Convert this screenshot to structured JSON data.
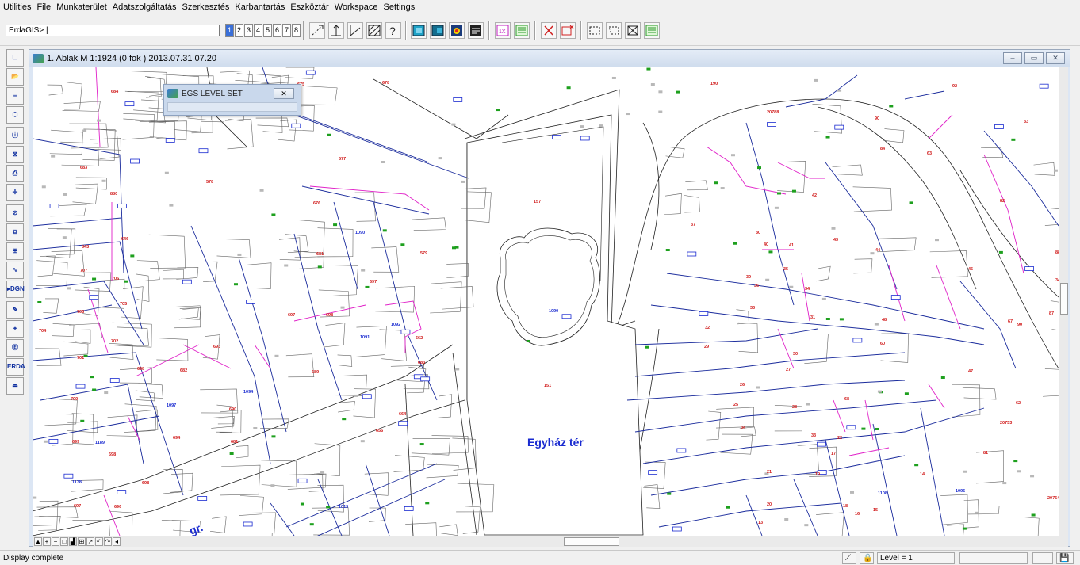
{
  "menu": [
    "Utilities",
    "File",
    "Munkaterület",
    "Adatszolgáltatás",
    "Szerkesztés",
    "Karbantartás",
    "Eszköztár",
    "Workspace",
    "Settings"
  ],
  "command": {
    "value": "ErdaGIS> |"
  },
  "views": [
    "1",
    "2",
    "3",
    "4",
    "5",
    "6",
    "7",
    "8"
  ],
  "window": {
    "title": "1. Ablak  M 1:1924   (0 fok )  2013.07.31 07.20",
    "minimize": "‒",
    "restore": "▭",
    "close": "✕"
  },
  "dialog": {
    "title": "EGS LEVEL SET",
    "close": "✕"
  },
  "left_tools": [
    {
      "name": "select-icon",
      "glyph": "☐"
    },
    {
      "name": "open-folder-icon",
      "glyph": "📂"
    },
    {
      "name": "layers-icon",
      "glyph": "≡"
    },
    {
      "name": "cube-icon",
      "glyph": "⬡"
    },
    {
      "name": "info-icon",
      "glyph": "ⓘ"
    },
    {
      "name": "zoom-query-icon",
      "glyph": "⊠"
    },
    {
      "name": "print-icon",
      "glyph": "⎙"
    },
    {
      "name": "snap-icon",
      "glyph": "✛"
    },
    {
      "name": "no-entry-icon",
      "glyph": "⊘"
    },
    {
      "name": "window-zoom-icon",
      "glyph": "⧉"
    },
    {
      "name": "grid-icon",
      "glyph": "⊞"
    },
    {
      "name": "polyline-icon",
      "glyph": "∿"
    },
    {
      "name": "dgn-icon",
      "glyph": "▸DGN"
    },
    {
      "name": "edit-doc-icon",
      "glyph": "✎"
    },
    {
      "name": "tree-icon",
      "glyph": "⌖"
    },
    {
      "name": "tree-e-icon",
      "glyph": "Ⓔ"
    },
    {
      "name": "erda-icon",
      "glyph": "ERDA"
    },
    {
      "name": "exit-icon",
      "glyph": "⏏"
    }
  ],
  "map": {
    "street_label": "Egyház tér",
    "street_label2": "gr.",
    "red_parcels": [
      [
        "684",
        99,
        32
      ],
      [
        "683",
        60,
        128
      ],
      [
        "880",
        98,
        161
      ],
      [
        "646",
        112,
        218
      ],
      [
        "643",
        62,
        228
      ],
      [
        "707",
        60,
        258
      ],
      [
        "706",
        100,
        268
      ],
      [
        "705",
        56,
        310
      ],
      [
        "705",
        110,
        300
      ],
      [
        "704",
        8,
        334
      ],
      [
        "702",
        99,
        347
      ],
      [
        "701",
        56,
        368
      ],
      [
        "698",
        132,
        382
      ],
      [
        "700",
        48,
        420
      ],
      [
        "699",
        50,
        474
      ],
      [
        "698",
        96,
        490
      ],
      [
        "697",
        52,
        555
      ],
      [
        "696",
        103,
        556
      ],
      [
        "698",
        138,
        526
      ],
      [
        "694",
        177,
        469
      ],
      [
        "682",
        186,
        384
      ],
      [
        "693",
        228,
        354
      ],
      [
        "681",
        250,
        474
      ],
      [
        "690",
        248,
        433
      ],
      [
        "697",
        322,
        314
      ],
      [
        "698",
        370,
        314
      ],
      [
        "689",
        352,
        386
      ],
      [
        "656",
        433,
        460
      ],
      [
        "664",
        462,
        439
      ],
      [
        "683",
        486,
        374
      ],
      [
        "662",
        483,
        343
      ],
      [
        "697",
        425,
        272
      ],
      [
        "578",
        219,
        146
      ],
      [
        "577",
        386,
        117
      ],
      [
        "676",
        354,
        173
      ],
      [
        "681",
        358,
        237
      ],
      [
        "579",
        489,
        236
      ],
      [
        "675",
        334,
        23
      ],
      [
        "678",
        441,
        21
      ],
      [
        "157",
        632,
        171
      ],
      [
        "151",
        645,
        403
      ],
      [
        "190",
        855,
        22
      ],
      [
        "20788",
        926,
        58
      ],
      [
        "90",
        1062,
        66
      ],
      [
        "84",
        1069,
        104
      ],
      [
        "63",
        1128,
        110
      ],
      [
        "92",
        1160,
        25
      ],
      [
        "82",
        1220,
        170
      ],
      [
        "33",
        1250,
        70
      ],
      [
        "73",
        1300,
        160
      ],
      [
        "88",
        1290,
        235
      ],
      [
        "90",
        1242,
        326
      ],
      [
        "87",
        1282,
        312
      ],
      [
        "67",
        1230,
        322
      ],
      [
        "47",
        1180,
        385
      ],
      [
        "62",
        1240,
        425
      ],
      [
        "34",
        1290,
        270
      ],
      [
        "20753",
        1220,
        450
      ],
      [
        "20754",
        1280,
        545
      ],
      [
        "81",
        1199,
        488
      ],
      [
        "68",
        1024,
        420
      ],
      [
        "60",
        1069,
        350
      ],
      [
        "48",
        1071,
        320
      ],
      [
        "44",
        1063,
        232
      ],
      [
        "45",
        1180,
        256
      ],
      [
        "42",
        983,
        163
      ],
      [
        "43",
        1010,
        219
      ],
      [
        "40",
        922,
        225
      ],
      [
        "41",
        954,
        226
      ],
      [
        "37",
        830,
        200
      ],
      [
        "30",
        912,
        210
      ],
      [
        "36",
        910,
        277
      ],
      [
        "35",
        947,
        256
      ],
      [
        "39",
        900,
        266
      ],
      [
        "34",
        974,
        281
      ],
      [
        "33",
        905,
        305
      ],
      [
        "31",
        981,
        317
      ],
      [
        "30",
        959,
        363
      ],
      [
        "27",
        950,
        383
      ],
      [
        "29",
        847,
        354
      ],
      [
        "26",
        892,
        402
      ],
      [
        "25",
        884,
        427
      ],
      [
        "34",
        893,
        456
      ],
      [
        "32",
        848,
        330
      ],
      [
        "28",
        958,
        430
      ],
      [
        "33",
        982,
        466
      ],
      [
        "22",
        1015,
        469
      ],
      [
        "17",
        1007,
        489
      ],
      [
        "19",
        987,
        515
      ],
      [
        "21",
        926,
        512
      ],
      [
        "20",
        926,
        553
      ],
      [
        "18",
        1022,
        555
      ],
      [
        "16",
        1037,
        565
      ],
      [
        "15",
        1060,
        560
      ],
      [
        "14",
        1119,
        515
      ],
      [
        "13",
        915,
        576
      ],
      [
        "10",
        1060,
        620
      ],
      [
        "12",
        853,
        601
      ],
      [
        "11",
        858,
        644
      ]
    ],
    "blue_parcels": [
      [
        "1090",
        407,
        210
      ],
      [
        "1090",
        651,
        309
      ],
      [
        "1091",
        413,
        342
      ],
      [
        "1092",
        452,
        326
      ],
      [
        "1097",
        169,
        428
      ],
      [
        "1094",
        266,
        411
      ],
      [
        "1095",
        1164,
        536
      ],
      [
        "1019",
        386,
        556
      ],
      [
        "1016",
        329,
        617
      ],
      [
        "1017",
        357,
        637
      ],
      [
        "1077",
        436,
        595
      ],
      [
        "1095",
        1046,
        601
      ],
      [
        "1189",
        79,
        475
      ],
      [
        "1138",
        50,
        525
      ],
      [
        "1108",
        1066,
        539
      ]
    ]
  },
  "status": {
    "text": "Display complete",
    "level": "Level = 1"
  }
}
